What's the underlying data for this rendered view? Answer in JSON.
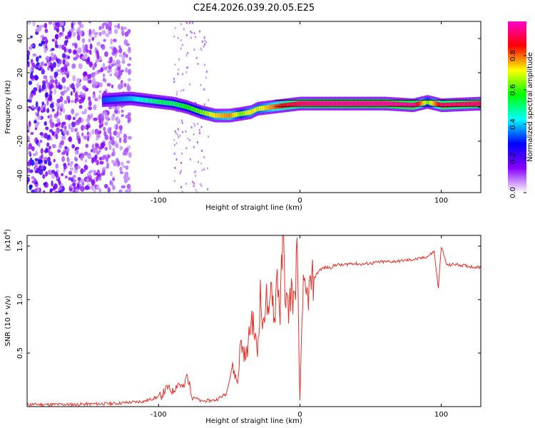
{
  "title": "C2E4.2026.039.20.05.E25",
  "chart_data": [
    {
      "type": "heatmap",
      "name": "spectrogram",
      "xlabel": "Height of straight line (km)",
      "ylabel": "Frequency (Hz)",
      "xlim": [
        -193,
        128
      ],
      "ylim": [
        -50,
        50
      ],
      "xticks": [
        -100,
        0,
        100
      ],
      "yticks": [
        -40,
        -20,
        0,
        20,
        40
      ],
      "colorbar": {
        "label": "Normalized spectral amplitude",
        "range": [
          0.0,
          1.0
        ],
        "ticks": [
          0.0,
          0.2,
          0.4,
          0.6,
          0.8
        ],
        "tick_labels": [
          "0.0",
          "0.2",
          "0.4",
          "0.6",
          "0.8"
        ],
        "colors": [
          "#ffffff",
          "#8800ff",
          "#0000ff",
          "#00ffff",
          "#00ff00",
          "#ffff00",
          "#ff0000",
          "#ff00cc"
        ]
      },
      "ridge": {
        "x": [
          -140,
          -120,
          -100,
          -90,
          -80,
          -70,
          -60,
          -50,
          -42,
          -35,
          -30,
          -20,
          -10,
          0,
          20,
          40,
          60,
          80,
          90,
          100,
          128
        ],
        "freq": [
          4,
          5,
          3,
          2,
          0,
          -3,
          -5,
          -5,
          -4,
          -3,
          -1,
          0,
          1,
          2,
          2,
          2,
          2,
          1,
          3,
          1,
          2
        ],
        "amplitude": [
          0.35,
          0.4,
          0.5,
          0.5,
          0.55,
          0.6,
          0.7,
          0.75,
          0.6,
          0.7,
          0.65,
          0.75,
          0.85,
          0.9,
          0.95,
          0.95,
          0.95,
          0.95,
          0.6,
          0.9,
          0.9
        ]
      },
      "noise_region_x": [
        -193,
        -120
      ]
    },
    {
      "type": "line",
      "name": "snr",
      "xlabel": "Height of straight line (km)",
      "ylabel": "SNR (10 * v/v)",
      "y_scale_label": "(x10",
      "y_scale_exponent": "4",
      "xlim": [
        -193,
        128
      ],
      "ylim": [
        0,
        1.6
      ],
      "xticks": [
        -100,
        0,
        100
      ],
      "yticks": [
        0.5,
        1.0,
        1.5
      ],
      "ytick_labels": [
        "0.5",
        "1.0",
        "1.5"
      ],
      "color": "#e8302a",
      "series": [
        {
          "name": "SNR",
          "x": [
            -193,
            -160,
            -130,
            -110,
            -98,
            -94,
            -90,
            -86,
            -82,
            -80,
            -76,
            -70,
            -60,
            -52,
            -48,
            -44,
            -42,
            -38,
            -34,
            -30,
            -28,
            -26,
            -24,
            -22,
            -20,
            -18,
            -16,
            -14,
            -12,
            -10,
            -8,
            -6,
            -4,
            -2,
            0,
            2,
            4,
            6,
            8,
            10,
            14,
            18,
            22,
            26,
            30,
            36,
            44,
            56,
            70,
            84,
            90,
            95,
            98,
            100,
            104,
            110,
            120,
            128
          ],
          "y": [
            0.02,
            0.02,
            0.03,
            0.05,
            0.1,
            0.18,
            0.14,
            0.22,
            0.17,
            0.3,
            0.1,
            0.05,
            0.06,
            0.12,
            0.38,
            0.22,
            0.6,
            0.45,
            0.85,
            0.5,
            1.05,
            0.7,
            1.1,
            0.75,
            1.2,
            0.8,
            1.28,
            0.85,
            1.6,
            1.0,
            0.9,
            1.1,
            0.95,
            1.45,
            0.05,
            1.1,
            1.0,
            1.05,
            1.15,
            1.2,
            1.28,
            1.3,
            1.3,
            1.33,
            1.32,
            1.34,
            1.33,
            1.35,
            1.36,
            1.38,
            1.4,
            1.45,
            1.1,
            1.5,
            1.32,
            1.33,
            1.31,
            1.3
          ]
        }
      ]
    }
  ]
}
